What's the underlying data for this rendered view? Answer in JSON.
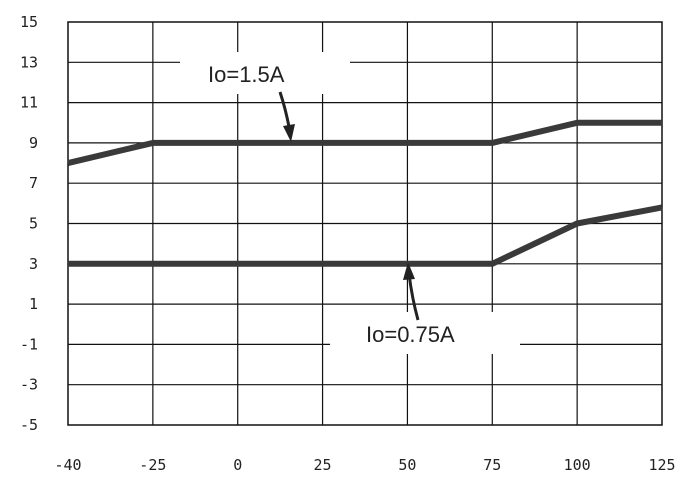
{
  "chart_data": {
    "type": "line",
    "title": "",
    "xlabel": "",
    "ylabel": "",
    "xlim": [
      -40,
      125
    ],
    "ylim": [
      -5,
      15
    ],
    "x_ticks": [
      -40,
      -25,
      0,
      25,
      50,
      75,
      100,
      125
    ],
    "y_ticks": [
      15,
      13,
      11,
      9,
      7,
      5,
      3,
      1,
      -1,
      -3,
      -5
    ],
    "grid": true,
    "legend": "none",
    "series": [
      {
        "x": [
          -40,
          -25,
          75,
          100,
          125
        ],
        "y": [
          8,
          9,
          9,
          10,
          10
        ]
      },
      {
        "x": [
          -40,
          75,
          100,
          125
        ],
        "y": [
          3,
          3,
          5,
          5.8
        ]
      }
    ],
    "annotations": [
      {
        "text": "Io=1.5A",
        "points_to": [
          15,
          9
        ]
      },
      {
        "text": "Io=0.75A",
        "points_to": [
          50,
          3
        ]
      }
    ],
    "colors": {
      "line": "#3a3a3a",
      "grid": "#111111"
    }
  }
}
